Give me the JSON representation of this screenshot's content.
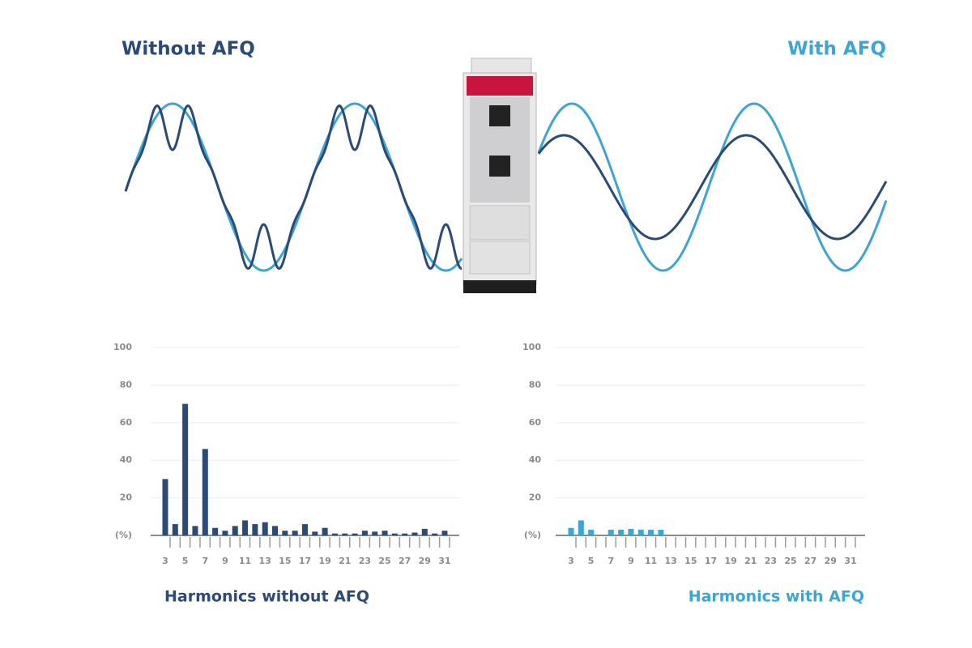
{
  "headings": {
    "left": "Without AFQ",
    "right": "With AFQ"
  },
  "chart_data": [
    {
      "type": "bar",
      "title": "Harmonics without AFQ",
      "categories": [
        "3",
        null,
        "5",
        null,
        "7",
        null,
        "9",
        null,
        "11",
        null,
        "13",
        null,
        "15",
        null,
        "17",
        null,
        "19",
        null,
        "21",
        null,
        "23",
        null,
        "25",
        null,
        "27",
        null,
        "29",
        null,
        "31"
      ],
      "values": [
        30,
        6,
        70,
        5,
        46,
        4,
        2.5,
        5,
        8,
        6,
        7,
        5,
        2.5,
        2.5,
        6,
        2,
        4,
        1,
        1,
        1,
        2.5,
        2,
        2.5,
        1,
        1,
        1.5,
        3.5,
        1,
        2.5
      ],
      "color": "#2a4a78",
      "ylim": [
        0,
        100
      ],
      "yticks": [
        {
          "value": 0,
          "label": "(%)"
        },
        20,
        40,
        60,
        80,
        100
      ],
      "grid": true
    },
    {
      "type": "bar",
      "title": "Harmonics with AFQ",
      "categories": [
        "3",
        null,
        "5",
        null,
        "7",
        null,
        "9",
        null,
        "11",
        null,
        "13",
        null,
        "15",
        null,
        "17",
        null,
        "19",
        null,
        "21",
        null,
        "23",
        null,
        "25",
        null,
        "27",
        null,
        "29",
        null,
        "31"
      ],
      "values": [
        4,
        8,
        3,
        0,
        3,
        3,
        3.5,
        3,
        3,
        3,
        0,
        0,
        0,
        0,
        0,
        0,
        0,
        0,
        0,
        0,
        0,
        0,
        0,
        0,
        0,
        0,
        0,
        0,
        0
      ],
      "color": "#3aa6d8",
      "ylim": [
        0,
        100
      ],
      "yticks": [
        {
          "value": 0,
          "label": "(%)"
        },
        20,
        40,
        60,
        80,
        100
      ],
      "grid": true
    }
  ]
}
